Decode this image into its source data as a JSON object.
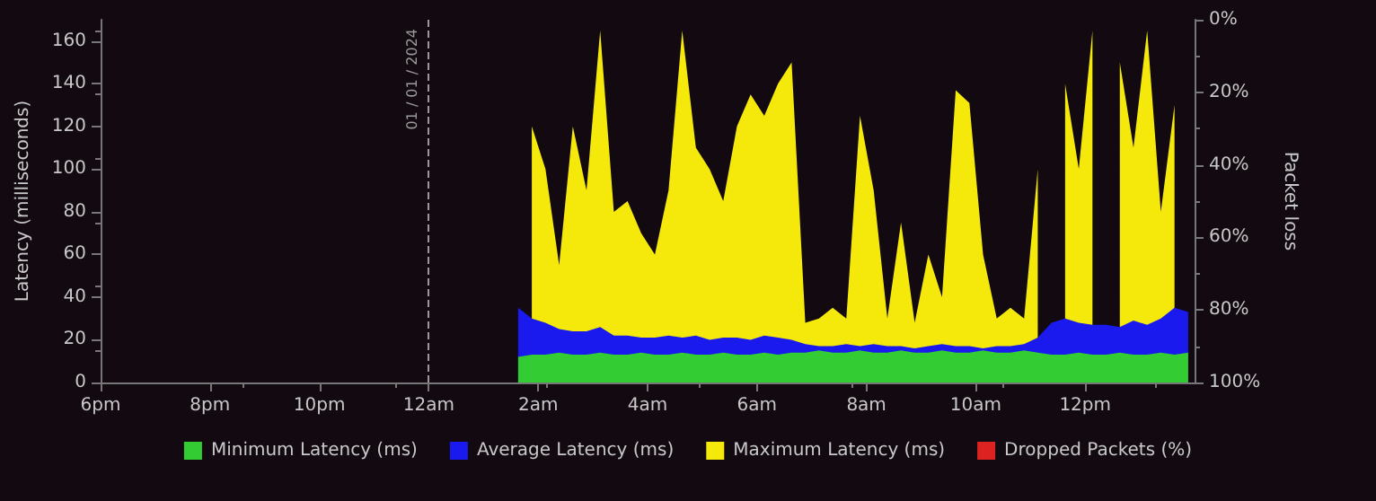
{
  "chart_data": {
    "type": "area",
    "ylabel": "Latency (milliseconds)",
    "y2label": "Packet loss",
    "x": [
      "2024-01-01T01:38",
      "2024-01-01T01:53",
      "2024-01-01T02:08",
      "2024-01-01T02:23",
      "2024-01-01T02:38",
      "2024-01-01T02:53",
      "2024-01-01T03:08",
      "2024-01-01T03:23",
      "2024-01-01T03:38",
      "2024-01-01T03:53",
      "2024-01-01T04:08",
      "2024-01-01T04:23",
      "2024-01-01T04:38",
      "2024-01-01T04:53",
      "2024-01-01T05:08",
      "2024-01-01T05:23",
      "2024-01-01T05:38",
      "2024-01-01T05:53",
      "2024-01-01T06:08",
      "2024-01-01T06:23",
      "2024-01-01T06:38",
      "2024-01-01T06:53",
      "2024-01-01T07:08",
      "2024-01-01T07:23",
      "2024-01-01T07:38",
      "2024-01-01T07:53",
      "2024-01-01T08:08",
      "2024-01-01T08:23",
      "2024-01-01T08:38",
      "2024-01-01T08:53",
      "2024-01-01T09:08",
      "2024-01-01T09:23",
      "2024-01-01T09:38",
      "2024-01-01T09:53",
      "2024-01-01T10:08",
      "2024-01-01T10:23",
      "2024-01-01T10:38",
      "2024-01-01T10:53",
      "2024-01-01T11:08",
      "2024-01-01T11:23",
      "2024-01-01T11:38",
      "2024-01-01T11:53",
      "2024-01-01T12:08",
      "2024-01-01T12:23",
      "2024-01-01T12:38",
      "2024-01-01T12:53",
      "2024-01-01T13:08",
      "2024-01-01T13:23",
      "2024-01-01T13:38",
      "2024-01-01T13:53"
    ],
    "xlim": [
      "2023-12-31T18:00",
      "2024-01-01T14:00"
    ],
    "xticks": [
      {
        "value": "2023-12-31T18:00",
        "label": "6pm"
      },
      {
        "value": "2023-12-31T20:00",
        "label": "8pm"
      },
      {
        "value": "2023-12-31T22:00",
        "label": "10pm"
      },
      {
        "value": "2024-01-01T00:00",
        "label": "12am"
      },
      {
        "value": "2024-01-01T02:00",
        "label": "2am"
      },
      {
        "value": "2024-01-01T04:00",
        "label": "4am"
      },
      {
        "value": "2024-01-01T06:00",
        "label": "6am"
      },
      {
        "value": "2024-01-01T08:00",
        "label": "8am"
      },
      {
        "value": "2024-01-01T10:00",
        "label": "10am"
      },
      {
        "value": "2024-01-01T12:00",
        "label": "12pm"
      }
    ],
    "ylim": [
      0,
      170
    ],
    "yticks": [
      0,
      20,
      40,
      60,
      80,
      100,
      120,
      140,
      160
    ],
    "y2lim": [
      100,
      0
    ],
    "y2ticks": [
      {
        "value": 0,
        "label": "0%"
      },
      {
        "value": 20,
        "label": "20%"
      },
      {
        "value": 40,
        "label": "40%"
      },
      {
        "value": 60,
        "label": "60%"
      },
      {
        "value": 80,
        "label": "80%"
      },
      {
        "value": 100,
        "label": "100%"
      }
    ],
    "ref_lines": [
      {
        "axis": "x",
        "value": "2024-01-01T00:00",
        "label": "01 / 01 / 2024",
        "color": "#9a9a9a",
        "line_style": "dashed"
      }
    ],
    "legend": "bottom",
    "grid": false,
    "series": [
      {
        "name": "Minimum Latency (ms)",
        "color": "#33cc33",
        "values": [
          12,
          13,
          13,
          14,
          13,
          13,
          14,
          13,
          13,
          14,
          13,
          13,
          14,
          13,
          13,
          14,
          13,
          13,
          14,
          13,
          14,
          14,
          15,
          14,
          14,
          15,
          14,
          14,
          15,
          14,
          14,
          15,
          14,
          14,
          15,
          14,
          14,
          15,
          14,
          13,
          13,
          14,
          13,
          13,
          14,
          13,
          13,
          14,
          13,
          14
        ]
      },
      {
        "name": "Average Latency (ms)",
        "color": "#1a1aee",
        "values": [
          35,
          30,
          28,
          25,
          24,
          24,
          26,
          22,
          22,
          21,
          21,
          22,
          21,
          22,
          20,
          21,
          21,
          20,
          22,
          21,
          20,
          18,
          17,
          17,
          18,
          17,
          18,
          17,
          17,
          16,
          17,
          18,
          17,
          17,
          16,
          17,
          17,
          18,
          21,
          28,
          30,
          28,
          27,
          27,
          26,
          29,
          27,
          30,
          35,
          33
        ]
      },
      {
        "name": "Maximum Latency (ms)",
        "color": "#f5e90c",
        "values": [
          null,
          120,
          100,
          55,
          120,
          90,
          165,
          80,
          85,
          70,
          60,
          90,
          165,
          110,
          100,
          85,
          120,
          135,
          125,
          140,
          150,
          28,
          30,
          35,
          30,
          125,
          90,
          30,
          75,
          28,
          60,
          40,
          137,
          131,
          60,
          30,
          35,
          30,
          100,
          null,
          140,
          100,
          165,
          null,
          150,
          110,
          165,
          80,
          130,
          null
        ]
      },
      {
        "name": "Dropped Packets (%)",
        "color": "#dd2222",
        "values": [
          null,
          null,
          null,
          null,
          null,
          null,
          null,
          null,
          null,
          null,
          null,
          null,
          null,
          null,
          null,
          null,
          null,
          null,
          null,
          null,
          null,
          null,
          null,
          null,
          null,
          null,
          null,
          null,
          null,
          null,
          null,
          null,
          null,
          null,
          null,
          null,
          null,
          null,
          null,
          null,
          null,
          null,
          null,
          null,
          null,
          null,
          null,
          null,
          null,
          null
        ]
      }
    ]
  }
}
